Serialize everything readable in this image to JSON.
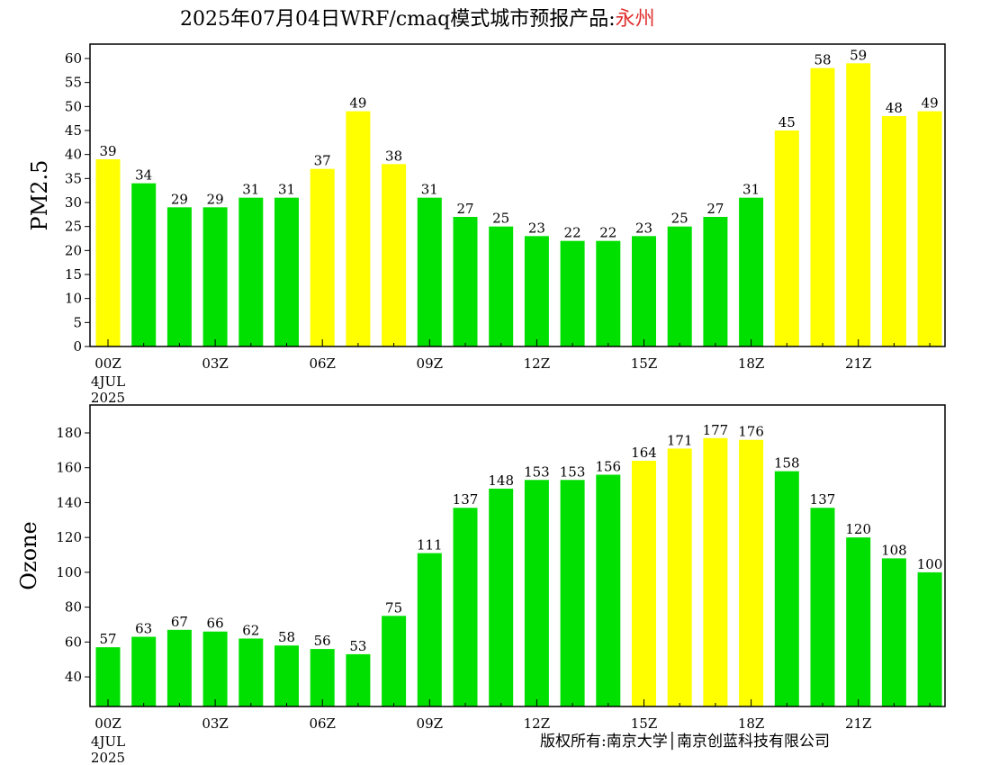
{
  "title": {
    "text": "2025年07月04日WRF/cmaq模式城市预报产品:",
    "city": "永州",
    "city_color": "#e03030"
  },
  "copyright": "版权所有:南京大学│南京创蓝科技有限公司",
  "colors": {
    "green": "#00e000",
    "yellow": "#ffff00"
  },
  "x_axis": {
    "tick_labels": [
      "00Z",
      "03Z",
      "06Z",
      "09Z",
      "12Z",
      "15Z",
      "18Z",
      "21Z"
    ],
    "date_label": [
      "4JUL",
      "2025"
    ]
  },
  "chart_data": [
    {
      "type": "bar",
      "ylabel": "PM2.5",
      "ylim": [
        0,
        63
      ],
      "yticks": [
        0,
        5,
        10,
        15,
        20,
        25,
        30,
        35,
        40,
        45,
        50,
        55,
        60
      ],
      "x_hours": [
        0,
        1,
        2,
        3,
        4,
        5,
        6,
        7,
        8,
        9,
        10,
        11,
        12,
        13,
        14,
        15,
        16,
        17,
        18,
        19,
        20,
        21,
        22,
        23
      ],
      "values": [
        39,
        34,
        29,
        29,
        31,
        31,
        37,
        49,
        38,
        31,
        27,
        25,
        23,
        22,
        22,
        23,
        25,
        27,
        31,
        45,
        58,
        59,
        48,
        49
      ],
      "bar_colors": [
        "yellow",
        "green",
        "green",
        "green",
        "green",
        "green",
        "yellow",
        "yellow",
        "yellow",
        "green",
        "green",
        "green",
        "green",
        "green",
        "green",
        "green",
        "green",
        "green",
        "green",
        "yellow",
        "yellow",
        "yellow",
        "yellow",
        "yellow"
      ]
    },
    {
      "type": "bar",
      "ylabel": "Ozone",
      "ylim": [
        23,
        196
      ],
      "yticks": [
        40,
        60,
        80,
        100,
        120,
        140,
        160,
        180
      ],
      "x_hours": [
        0,
        1,
        2,
        3,
        4,
        5,
        6,
        7,
        8,
        9,
        10,
        11,
        12,
        13,
        14,
        15,
        16,
        17,
        18,
        19,
        20,
        21,
        22,
        23
      ],
      "values": [
        57,
        63,
        67,
        66,
        62,
        58,
        56,
        53,
        75,
        111,
        137,
        148,
        153,
        153,
        156,
        164,
        171,
        177,
        176,
        158,
        137,
        120,
        108,
        100
      ],
      "bar_colors": [
        "green",
        "green",
        "green",
        "green",
        "green",
        "green",
        "green",
        "green",
        "green",
        "green",
        "green",
        "green",
        "green",
        "green",
        "green",
        "yellow",
        "yellow",
        "yellow",
        "yellow",
        "green",
        "green",
        "green",
        "green",
        "green"
      ]
    }
  ]
}
